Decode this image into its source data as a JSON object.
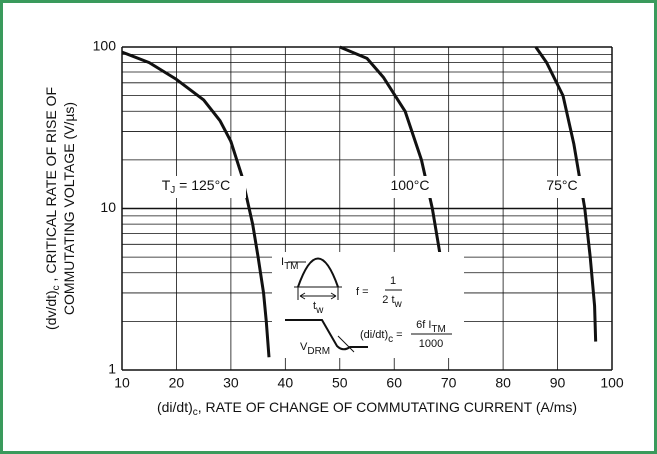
{
  "chart_data": {
    "type": "line",
    "yscale": "log",
    "grid": true,
    "x_label": [
      "(di/dt)",
      "c",
      ", RATE OF CHANGE OF COMMUTATING CURRENT (A/ms)"
    ],
    "y_label": [
      [
        "(dv/dt)",
        "c",
        " , CRITICAL RATE OF RISE OF"
      ],
      [
        "COMMUTATING VOLTAGE (V/µs)"
      ]
    ],
    "xlim": [
      10,
      100
    ],
    "xticks": [
      10,
      20,
      30,
      40,
      50,
      60,
      70,
      80,
      90,
      100
    ],
    "ylim": [
      1,
      100
    ],
    "yticks": [
      1,
      10,
      100
    ],
    "yminor": [
      2,
      3,
      4,
      5,
      6,
      7,
      8,
      9,
      20,
      30,
      40,
      50,
      60,
      70,
      80,
      90
    ],
    "series": [
      {
        "color": "#111111",
        "x": [
          10,
          15,
          20,
          25,
          28,
          30,
          32,
          34,
          35,
          36,
          36.5,
          37
        ],
        "values": [
          93,
          80,
          63,
          47,
          35,
          26,
          16,
          8,
          5,
          3,
          2,
          1.2
        ]
      },
      {
        "color": "#111111",
        "x": [
          50,
          55,
          58,
          62,
          65,
          67,
          68.5,
          69.5,
          70.5,
          71
        ],
        "values": [
          100,
          85,
          65,
          40,
          20,
          10,
          5,
          3,
          2,
          1.2
        ]
      },
      {
        "color": "#111111",
        "x": [
          86,
          88,
          91,
          93,
          95,
          96,
          96.8,
          97
        ],
        "values": [
          100,
          80,
          50,
          25,
          10,
          5,
          2.5,
          1.5
        ]
      }
    ],
    "annotations": [
      [
        "T",
        "J",
        " = 125°C"
      ],
      [
        "100°C"
      ],
      [
        "75°C"
      ]
    ],
    "inset": {
      "itm": [
        "I",
        "TM"
      ],
      "tw": [
        "t",
        "w"
      ],
      "f": "f =",
      "f_num": "1",
      "f_den": [
        "2 t",
        "w"
      ],
      "vdrm": [
        "V",
        "DRM"
      ],
      "didt": [
        "(di/dt)",
        "c",
        " ="
      ],
      "didt_num": [
        "6f I",
        "TM"
      ],
      "didt_den": "1000"
    }
  }
}
